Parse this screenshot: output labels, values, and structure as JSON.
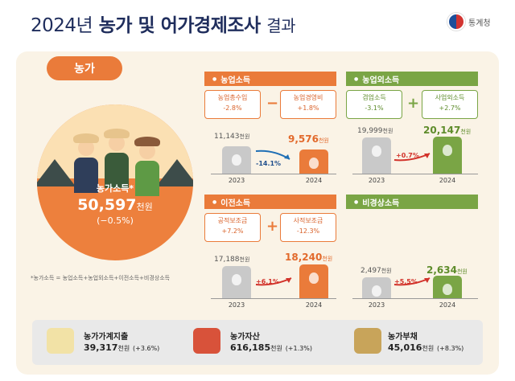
{
  "header": {
    "title_year": "2024년",
    "title_main": "농가 및 어가경제조사",
    "title_suffix": "결과",
    "logo_text": "통계청"
  },
  "farm_tag": "농가",
  "farm_income": {
    "label": "농가소득*",
    "value": "50,597",
    "unit": "천원",
    "change": "(−0.5%)"
  },
  "footnote": "*농가소득 = 농업소득+농업외소득+이전소득+비경상소득",
  "sections": {
    "agri": {
      "title": "농업소득",
      "left_box": {
        "label": "농업총수입",
        "value": "-2.8%"
      },
      "operator": "−",
      "right_box": {
        "label": "농업경영비",
        "value": "+1.8%"
      },
      "v2023": "11,143",
      "v2024": "9,576",
      "unit": "천원",
      "change": "-14.1%",
      "y2023": "2023",
      "y2024": "2024"
    },
    "nonagri": {
      "title": "농업외소득",
      "left_box": {
        "label": "겸업소득",
        "value": "-3.1%"
      },
      "operator": "+",
      "right_box": {
        "label": "사업외소득",
        "value": "+2.7%"
      },
      "v2023": "19,999",
      "v2024": "20,147",
      "unit": "천원",
      "change": "+0.7%",
      "y2023": "2023",
      "y2024": "2024"
    },
    "transfer": {
      "title": "이전소득",
      "left_box": {
        "label": "공적보조금",
        "value": "+7.2%"
      },
      "operator": "+",
      "right_box": {
        "label": "사적보조금",
        "value": "-12.3%"
      },
      "v2023": "17,188",
      "v2024": "18,240",
      "unit": "천원",
      "change": "+6.1%",
      "y2023": "2023",
      "y2024": "2024"
    },
    "irregular": {
      "title": "비경상소득",
      "v2023": "2,497",
      "v2024": "2,634",
      "unit": "천원",
      "change": "+5.5%",
      "y2023": "2023",
      "y2024": "2024"
    }
  },
  "bottom": [
    {
      "name": "농가가계지출",
      "value": "39,317",
      "unit": "천원",
      "change": "(+3.6%)",
      "icon": "receipt-icon"
    },
    {
      "name": "농가자산",
      "value": "616,185",
      "unit": "천원",
      "change": "(+1.3%)",
      "icon": "tractor-icon"
    },
    {
      "name": "농가부채",
      "value": "45,016",
      "unit": "천원",
      "change": "(+8.3%)",
      "icon": "bank-icon"
    }
  ],
  "colors": {
    "orange": "#ea7b3a",
    "green": "#7aa545",
    "navy": "#1f2d5c",
    "gray": "#c9c9c9"
  }
}
